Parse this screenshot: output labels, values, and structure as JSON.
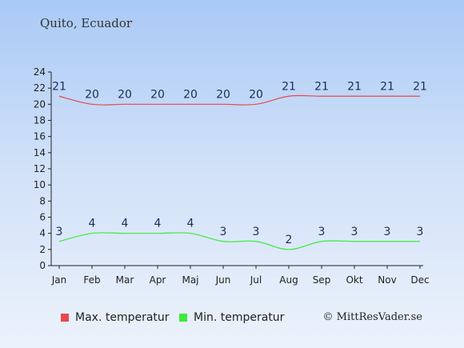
{
  "header": {
    "location": "Quito, Ecuador"
  },
  "footer": {
    "copyright": "© MittResVader.se"
  },
  "colors": {
    "max": "#e8484f",
    "min": "#3ee83e",
    "axis": "#222222",
    "label": "#1a2e5a"
  },
  "chart_data": {
    "type": "line",
    "title": "",
    "xlabel": "",
    "ylabel": "",
    "categories": [
      "Jan",
      "Feb",
      "Mar",
      "Apr",
      "Maj",
      "Jun",
      "Jul",
      "Aug",
      "Sep",
      "Okt",
      "Nov",
      "Dec"
    ],
    "ylim": [
      0,
      24
    ],
    "yticks": [
      0,
      2,
      4,
      6,
      8,
      10,
      12,
      14,
      16,
      18,
      20,
      22,
      24
    ],
    "grid": false,
    "legend_position": "bottom",
    "series": [
      {
        "name": "Max. temperatur",
        "values": [
          21,
          20,
          20,
          20,
          20,
          20,
          20,
          21,
          21,
          21,
          21,
          21
        ]
      },
      {
        "name": "Min. temperatur",
        "values": [
          3,
          4,
          4,
          4,
          4,
          3,
          3,
          2,
          3,
          3,
          3,
          3
        ]
      }
    ]
  }
}
